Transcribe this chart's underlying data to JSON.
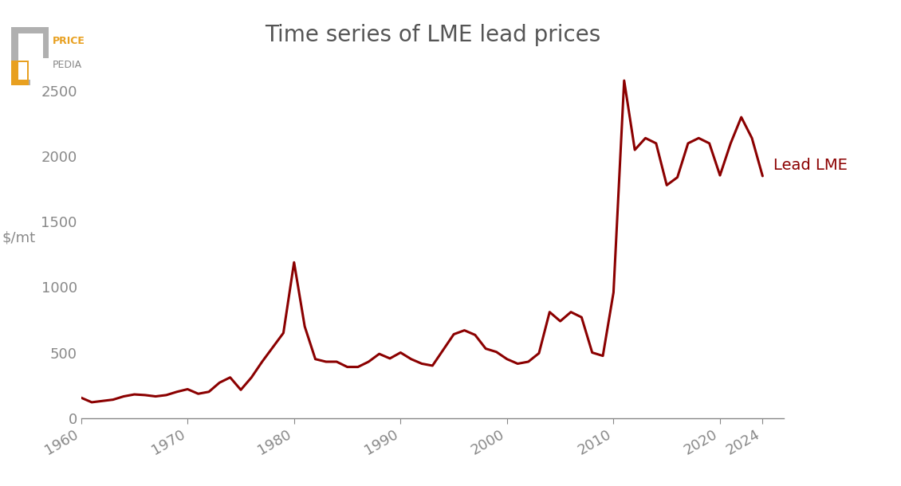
{
  "title": "Time series of LME lead prices",
  "ylabel": "$/mt",
  "line_color": "#8B0000",
  "line_width": 2.2,
  "label_color": "#8B0000",
  "label_text": "Lead LME",
  "title_color": "#555555",
  "axis_color": "#888888",
  "background_color": "#ffffff",
  "years": [
    1960,
    1961,
    1962,
    1963,
    1964,
    1965,
    1966,
    1967,
    1968,
    1969,
    1970,
    1971,
    1972,
    1973,
    1974,
    1975,
    1976,
    1977,
    1978,
    1979,
    1980,
    1981,
    1982,
    1983,
    1984,
    1985,
    1986,
    1987,
    1988,
    1989,
    1990,
    1991,
    1992,
    1993,
    1994,
    1995,
    1996,
    1997,
    1998,
    1999,
    2000,
    2001,
    2002,
    2003,
    2004,
    2005,
    2006,
    2007,
    2008,
    2009,
    2010,
    2011,
    2012,
    2013,
    2014,
    2015,
    2016,
    2017,
    2018,
    2019,
    2020,
    2021,
    2022,
    2023,
    2024
  ],
  "prices": [
    155,
    120,
    130,
    140,
    165,
    180,
    175,
    165,
    175,
    200,
    220,
    185,
    200,
    270,
    310,
    215,
    310,
    430,
    540,
    650,
    1190,
    700,
    450,
    430,
    430,
    390,
    390,
    430,
    490,
    455,
    500,
    450,
    415,
    400,
    520,
    640,
    670,
    635,
    530,
    505,
    450,
    415,
    430,
    495,
    810,
    740,
    810,
    770,
    500,
    475,
    960,
    2580,
    2050,
    2140,
    2100,
    1780,
    1840,
    2100,
    2140,
    2100,
    1855,
    2100,
    2300,
    2140,
    1850
  ],
  "xlim": [
    1960,
    2026
  ],
  "ylim": [
    0,
    2750
  ],
  "yticks": [
    0,
    500,
    1000,
    1500,
    2000,
    2500
  ],
  "xticks": [
    1960,
    1970,
    1980,
    1990,
    2000,
    2010,
    2020,
    2024
  ],
  "xtick_labels": [
    "1960",
    "1970",
    "1980",
    "1990",
    "2000",
    "2010",
    "2020",
    "2024"
  ]
}
